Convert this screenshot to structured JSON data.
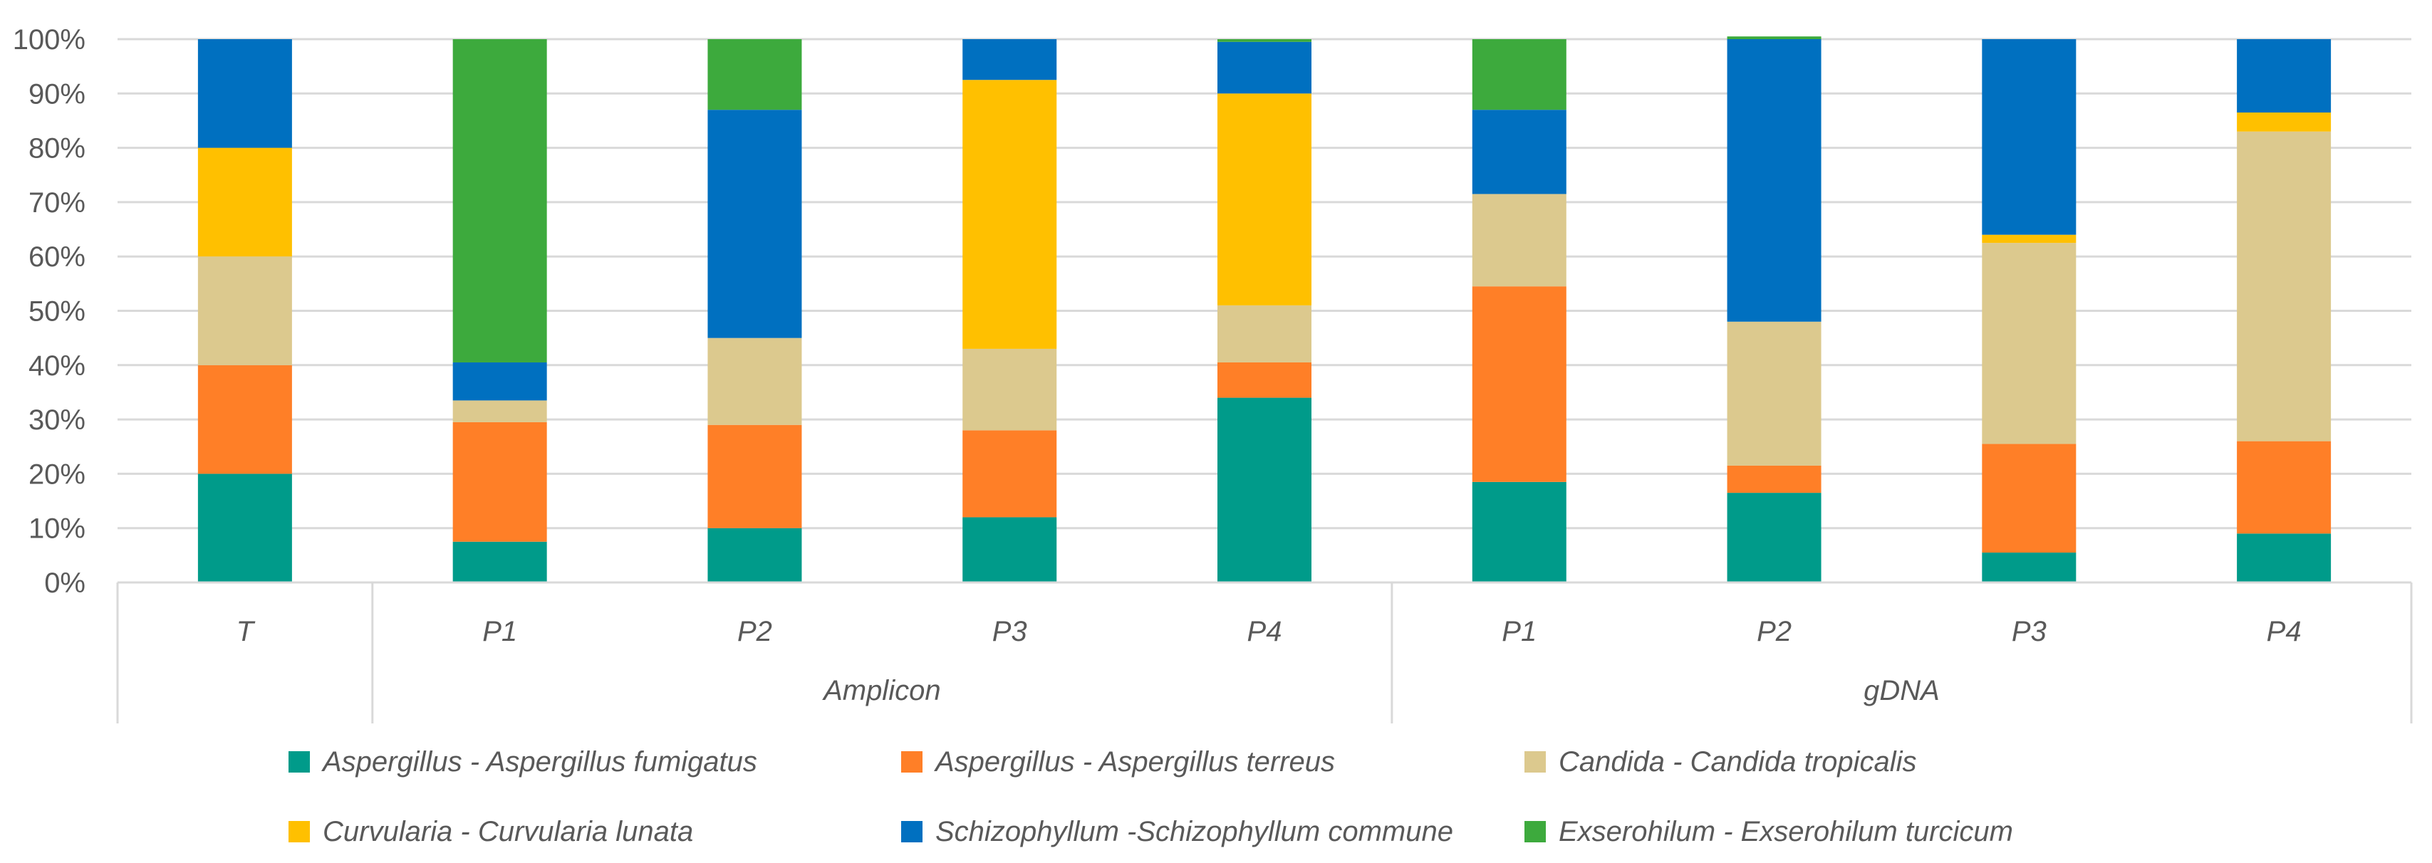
{
  "chart_data": {
    "type": "bar",
    "stacked": true,
    "percent": true,
    "groups": [
      {
        "label": "",
        "categories": [
          "T"
        ]
      },
      {
        "label": "Amplicon",
        "categories": [
          "P1",
          "P2",
          "P3",
          "P4"
        ]
      },
      {
        "label": "gDNA",
        "categories": [
          "P1",
          "P2",
          "P3",
          "P4"
        ]
      }
    ],
    "categories": [
      "T",
      "P1",
      "P2",
      "P3",
      "P4",
      "P1",
      "P2",
      "P3",
      "P4"
    ],
    "y_ticks": [
      "0%",
      "10%",
      "20%",
      "30%",
      "40%",
      "50%",
      "60%",
      "70%",
      "80%",
      "90%",
      "100%"
    ],
    "ylim": [
      0,
      100
    ],
    "grid": true,
    "legend_position": "bottom",
    "series": [
      {
        "name": "Aspergillus - Aspergillus fumigatus",
        "color": "#009B8A",
        "values": [
          20,
          7.5,
          10,
          12,
          34,
          18.5,
          16.5,
          5.5,
          9
        ]
      },
      {
        "name": "Aspergillus - Aspergillus terreus",
        "color": "#FF7F27",
        "values": [
          20,
          22,
          19,
          16,
          6.5,
          36,
          5,
          20,
          17
        ]
      },
      {
        "name": "Candida - Candida tropicalis",
        "color": "#DCC98E",
        "values": [
          20,
          4,
          16,
          15,
          10.5,
          17,
          26.5,
          37,
          57
        ]
      },
      {
        "name": "Curvularia - Curvularia lunata",
        "color": "#FFC000",
        "values": [
          20,
          0,
          0,
          49.5,
          39,
          0,
          0,
          1.5,
          3.5
        ]
      },
      {
        "name": "Schizophyllum -Schizophyllum commune",
        "color": "#0070C0",
        "values": [
          20,
          7,
          42,
          7.5,
          9.5,
          15.5,
          52,
          36,
          13.5
        ]
      },
      {
        "name": "Exserohilum - Exserohilum turcicum",
        "color": "#3DAA3D",
        "values": [
          0,
          59.5,
          13,
          0,
          0.5,
          13,
          0.5,
          0,
          0
        ]
      }
    ]
  }
}
